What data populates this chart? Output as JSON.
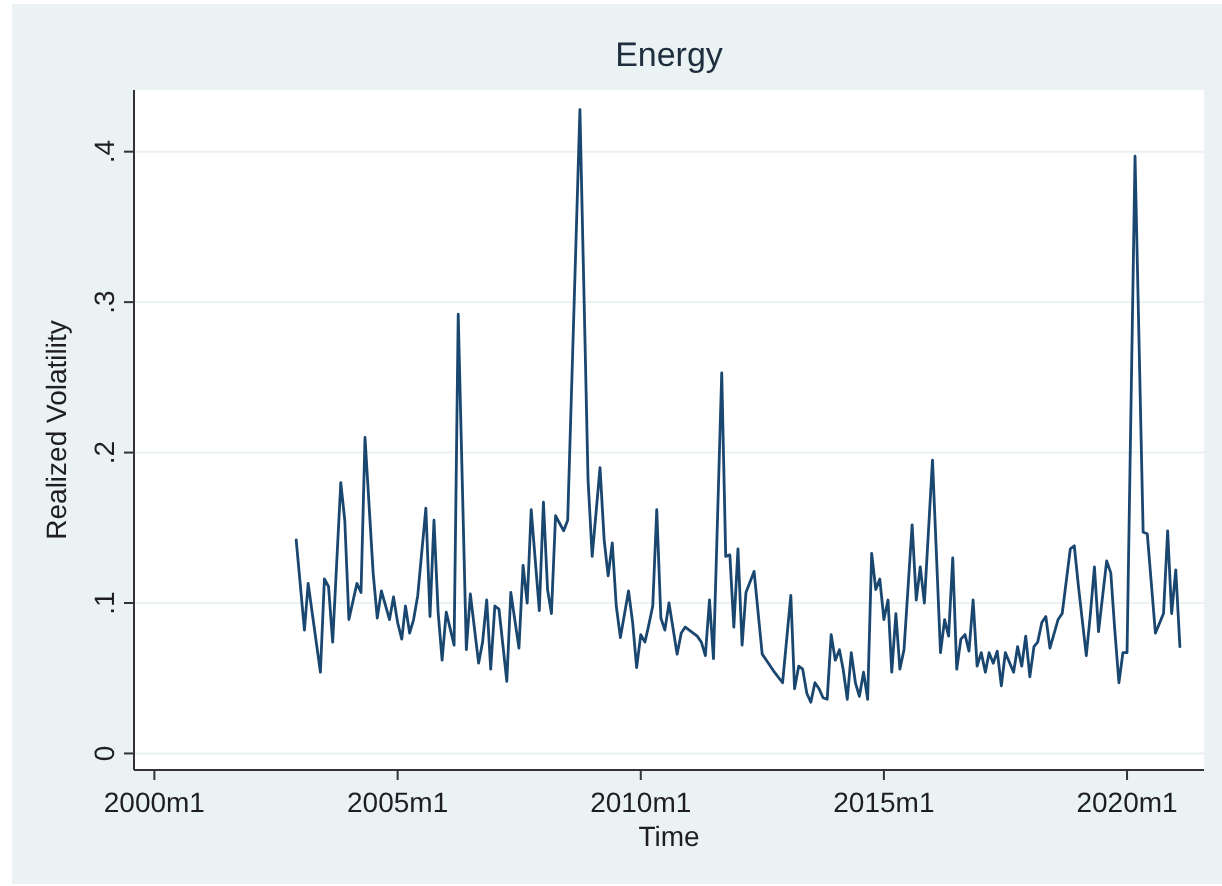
{
  "chart_data": {
    "type": "line",
    "title": "Energy",
    "xlabel": "Time",
    "ylabel": "Realized Volatility",
    "x": [
      "2002-12",
      "2003-02",
      "2003-03",
      "2003-04",
      "2003-06",
      "2003-07",
      "2003-08",
      "2003-09",
      "2003-11",
      "2003-12",
      "2004-01",
      "2004-03",
      "2004-04",
      "2004-05",
      "2004-07",
      "2004-08",
      "2004-09",
      "2004-11",
      "2004-12",
      "2005-01",
      "2005-02",
      "2005-03",
      "2005-04",
      "2005-05",
      "2005-06",
      "2005-08",
      "2005-09",
      "2005-10",
      "2005-11",
      "2005-12",
      "2006-01",
      "2006-03",
      "2006-04",
      "2006-06",
      "2006-07",
      "2006-09",
      "2006-10",
      "2006-11",
      "2006-12",
      "2007-01",
      "2007-02",
      "2007-04",
      "2007-05",
      "2007-07",
      "2007-08",
      "2007-09",
      "2007-10",
      "2007-12",
      "2008-01",
      "2008-02",
      "2008-03",
      "2008-04",
      "2008-06",
      "2008-07",
      "2008-10",
      "2008-12",
      "2009-01",
      "2009-03",
      "2009-04",
      "2009-05",
      "2009-06",
      "2009-07",
      "2009-08",
      "2009-10",
      "2009-11",
      "2009-12",
      "2010-01",
      "2010-02",
      "2010-03",
      "2010-04",
      "2010-05",
      "2010-06",
      "2010-07",
      "2010-08",
      "2010-10",
      "2010-11",
      "2010-12",
      "2011-03",
      "2011-04",
      "2011-05",
      "2011-06",
      "2011-07",
      "2011-09",
      "2011-10",
      "2011-11",
      "2011-12",
      "2012-01",
      "2012-02",
      "2012-03",
      "2012-05",
      "2012-06",
      "2012-07",
      "2012-09",
      "2012-10",
      "2012-12",
      "2013-02",
      "2013-03",
      "2013-04",
      "2013-05",
      "2013-06",
      "2013-07",
      "2013-08",
      "2013-09",
      "2013-10",
      "2013-11",
      "2013-12",
      "2014-01",
      "2014-02",
      "2014-03",
      "2014-04",
      "2014-05",
      "2014-06",
      "2014-07",
      "2014-08",
      "2014-09",
      "2014-10",
      "2014-11",
      "2014-12",
      "2015-01",
      "2015-02",
      "2015-03",
      "2015-04",
      "2015-05",
      "2015-06",
      "2015-08",
      "2015-09",
      "2015-10",
      "2015-11",
      "2016-01",
      "2016-03",
      "2016-04",
      "2016-05",
      "2016-06",
      "2016-07",
      "2016-08",
      "2016-09",
      "2016-10",
      "2016-11",
      "2016-12",
      "2017-01",
      "2017-02",
      "2017-03",
      "2017-04",
      "2017-05",
      "2017-06",
      "2017-07",
      "2017-09",
      "2017-10",
      "2017-11",
      "2017-12",
      "2018-01",
      "2018-02",
      "2018-03",
      "2018-04",
      "2018-05",
      "2018-06",
      "2018-08",
      "2018-09",
      "2018-11",
      "2018-12",
      "2019-01",
      "2019-03",
      "2019-04",
      "2019-05",
      "2019-06",
      "2019-08",
      "2019-09",
      "2019-10",
      "2019-11",
      "2019-12",
      "2020-01",
      "2020-03",
      "2020-05",
      "2020-06",
      "2020-08",
      "2020-10",
      "2020-11",
      "2020-12",
      "2021-01",
      "2021-02"
    ],
    "series": [
      {
        "color": "#1a476f",
        "values": [
          0.142,
          0.082,
          0.113,
          0.093,
          0.054,
          0.116,
          0.111,
          0.074,
          0.18,
          0.155,
          0.089,
          0.113,
          0.107,
          0.21,
          0.12,
          0.09,
          0.108,
          0.089,
          0.104,
          0.087,
          0.076,
          0.098,
          0.08,
          0.089,
          0.105,
          0.163,
          0.091,
          0.155,
          0.094,
          0.062,
          0.094,
          0.072,
          0.292,
          0.069,
          0.106,
          0.06,
          0.074,
          0.102,
          0.056,
          0.098,
          0.096,
          0.048,
          0.107,
          0.07,
          0.125,
          0.1,
          0.162,
          0.095,
          0.167,
          0.109,
          0.093,
          0.158,
          0.148,
          0.155,
          0.428,
          0.182,
          0.131,
          0.19,
          0.142,
          0.118,
          0.14,
          0.098,
          0.077,
          0.108,
          0.087,
          0.057,
          0.079,
          0.074,
          0.085,
          0.098,
          0.162,
          0.09,
          0.082,
          0.1,
          0.066,
          0.08,
          0.084,
          0.078,
          0.074,
          0.065,
          0.102,
          0.063,
          0.253,
          0.131,
          0.132,
          0.084,
          0.136,
          0.072,
          0.107,
          0.121,
          0.093,
          0.066,
          0.058,
          0.054,
          0.047,
          0.105,
          0.043,
          0.058,
          0.056,
          0.04,
          0.034,
          0.047,
          0.043,
          0.037,
          0.036,
          0.079,
          0.062,
          0.069,
          0.056,
          0.036,
          0.067,
          0.047,
          0.038,
          0.054,
          0.036,
          0.133,
          0.109,
          0.116,
          0.089,
          0.102,
          0.054,
          0.093,
          0.056,
          0.069,
          0.152,
          0.102,
          0.124,
          0.1,
          0.195,
          0.067,
          0.089,
          0.078,
          0.13,
          0.056,
          0.076,
          0.079,
          0.068,
          0.102,
          0.058,
          0.067,
          0.054,
          0.067,
          0.06,
          0.068,
          0.045,
          0.067,
          0.054,
          0.071,
          0.058,
          0.078,
          0.051,
          0.071,
          0.074,
          0.087,
          0.091,
          0.07,
          0.089,
          0.093,
          0.136,
          0.138,
          0.111,
          0.065,
          0.093,
          0.124,
          0.081,
          0.128,
          0.12,
          0.082,
          0.047,
          0.067,
          0.067,
          0.397,
          0.147,
          0.146,
          0.08,
          0.093,
          0.148,
          0.093,
          0.122,
          0.071
        ]
      }
    ],
    "xlim": [
      "1999-08",
      "2021-08"
    ],
    "xticks": [
      {
        "value": "2000-01",
        "label": "2000m1"
      },
      {
        "value": "2005-01",
        "label": "2005m1"
      },
      {
        "value": "2010-01",
        "label": "2010m1"
      },
      {
        "value": "2015-01",
        "label": "2015m1"
      },
      {
        "value": "2020-01",
        "label": "2020m1"
      }
    ],
    "ylim": [
      -0.011,
      0.441
    ],
    "yticks": [
      0,
      {
        "value": 0.1,
        "label": ".1"
      },
      {
        "value": 0.2,
        "label": ".2"
      },
      {
        "value": 0.3,
        "label": ".3"
      },
      {
        "value": 0.4,
        "label": ".4"
      }
    ],
    "grid": "y"
  }
}
